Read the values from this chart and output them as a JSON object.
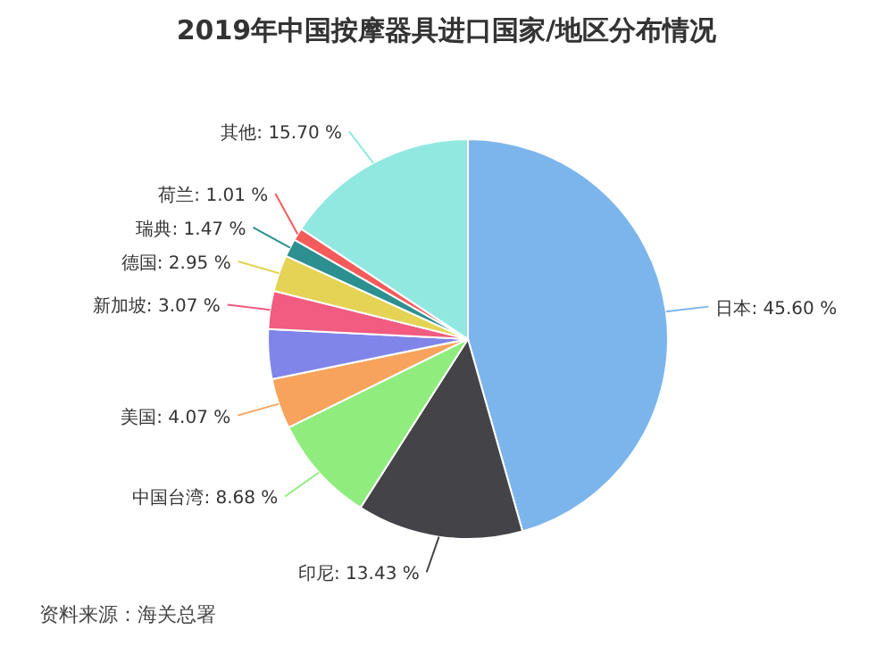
{
  "chart_data": {
    "type": "pie",
    "title": "2019年中国按摩器具进口国家/地区分布情况",
    "categories": [
      "日本",
      "印尼",
      "中国台湾",
      "美国",
      null,
      "新加坡",
      "德国",
      "瑞典",
      "荷兰",
      "其他"
    ],
    "values": [
      45.6,
      13.43,
      8.68,
      4.07,
      4.02,
      3.07,
      2.95,
      1.47,
      1.01,
      15.7
    ],
    "value_labels": [
      ": 45.60 %",
      ": 13.43 %",
      ": 8.68 %",
      ": 4.07 %",
      null,
      ": 3.07 %",
      ": 2.95 %",
      ": 1.47 %",
      ": 1.01 %",
      ": 15.70 %"
    ],
    "colors": [
      "#7cb5ec",
      "#434348",
      "#90ed7d",
      "#f7a35c",
      "#8085e9",
      "#f15c80",
      "#e4d354",
      "#2b908f",
      "#f45b5b",
      "#91e8e1"
    ],
    "annotations": [
      "资料来源：海关总署"
    ]
  }
}
